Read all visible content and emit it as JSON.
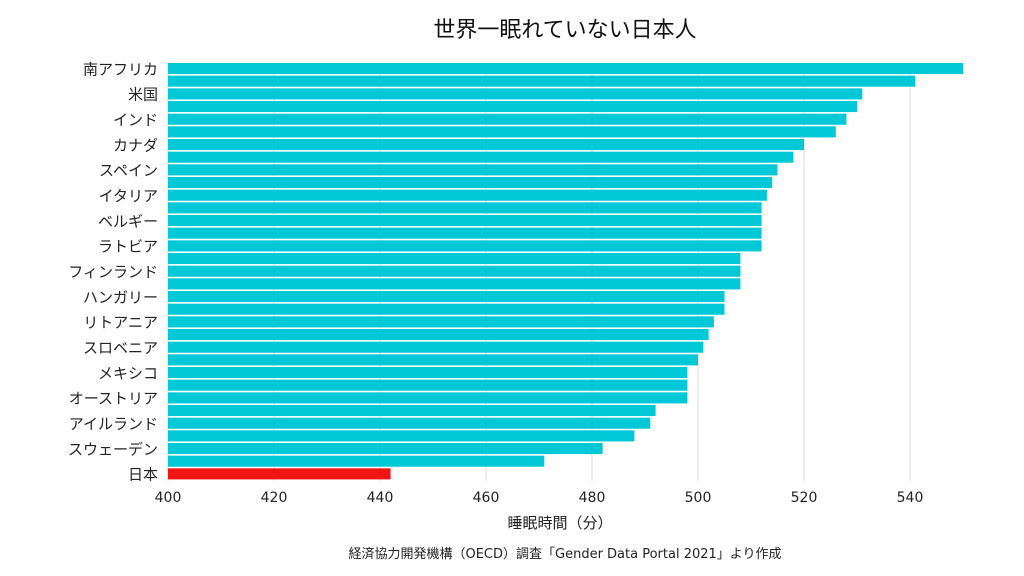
{
  "chart_data": {
    "type": "bar",
    "orientation": "horizontal",
    "title": "世界一眠れていない日本人",
    "xlabel": "睡眠時間（分）",
    "source": "経済協力開発機構（OECD）調査「Gender Data Portal 2021」より作成",
    "xlim": [
      400,
      550
    ],
    "xticks": [
      400,
      420,
      440,
      460,
      480,
      500,
      520,
      540
    ],
    "grid": "vertical",
    "bar_color": "#00c8d7",
    "highlight_color": "#f01414",
    "highlight_index": 32,
    "labeled_rows": [
      {
        "index": 0,
        "label": "南アフリカ"
      },
      {
        "index": 2,
        "label": "米国"
      },
      {
        "index": 4,
        "label": "インド"
      },
      {
        "index": 6,
        "label": "カナダ"
      },
      {
        "index": 8,
        "label": "スペイン"
      },
      {
        "index": 10,
        "label": "イタリア"
      },
      {
        "index": 12,
        "label": "ベルギー"
      },
      {
        "index": 14,
        "label": "ラトビア"
      },
      {
        "index": 16,
        "label": "フィンランド"
      },
      {
        "index": 18,
        "label": "ハンガリー"
      },
      {
        "index": 20,
        "label": "リトアニア"
      },
      {
        "index": 22,
        "label": "スロベニア"
      },
      {
        "index": 24,
        "label": "メキシコ"
      },
      {
        "index": 26,
        "label": "オーストリア"
      },
      {
        "index": 28,
        "label": "アイルランド"
      },
      {
        "index": 30,
        "label": "スウェーデン"
      },
      {
        "index": 32,
        "label": "日本"
      }
    ],
    "values": [
      550,
      541,
      531,
      530,
      528,
      526,
      520,
      518,
      515,
      514,
      513,
      512,
      512,
      512,
      512,
      508,
      508,
      508,
      505,
      505,
      503,
      502,
      501,
      500,
      498,
      498,
      498,
      492,
      491,
      488,
      482,
      471,
      442
    ]
  }
}
